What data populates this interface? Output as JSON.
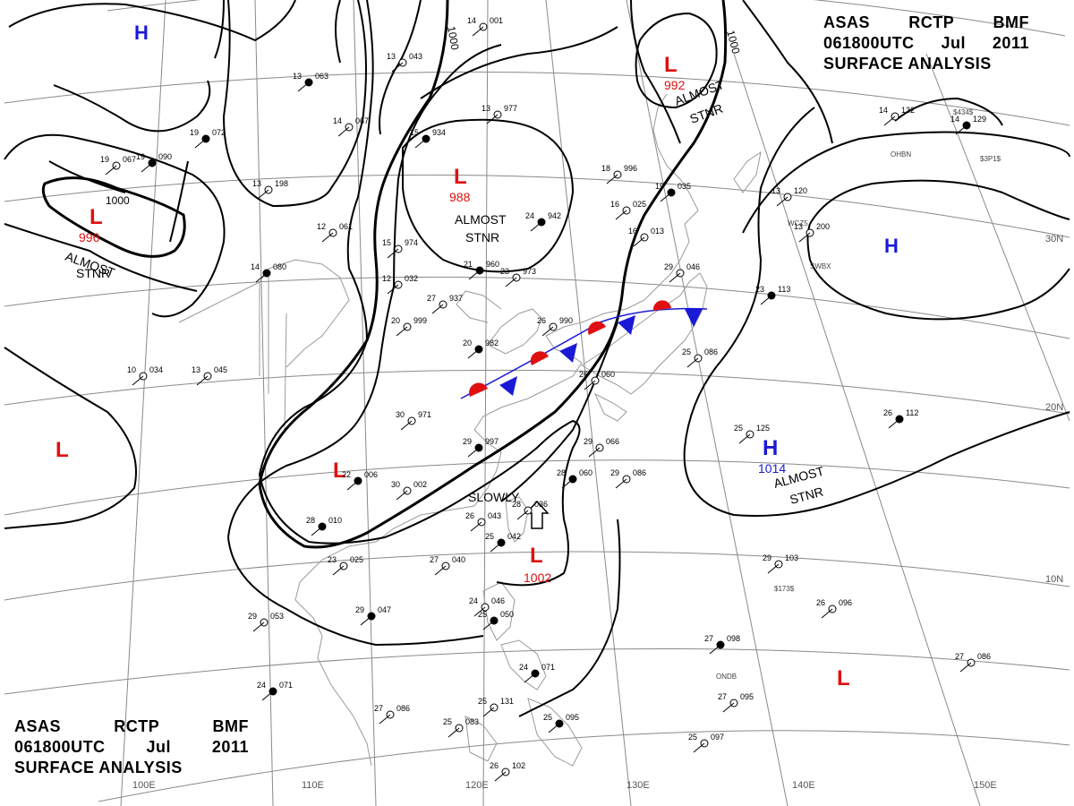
{
  "header": {
    "line1": [
      "ASAS",
      "RCTP",
      "BMF"
    ],
    "line2": [
      "061800UTC",
      "Jul",
      "2011"
    ],
    "line3": "SURFACE ANALYSIS"
  },
  "colors": {
    "high": "#1a1ad6",
    "low": "#e01010",
    "isobar": "#000000",
    "grid": "#8a8a8a",
    "warm_front": "#e01010",
    "cold_front": "#1a1ad6"
  },
  "grid": {
    "lon_labels": [
      "100E",
      "110E",
      "120E",
      "130E",
      "140E",
      "150E"
    ],
    "lat_labels": [
      "30N",
      "20N",
      "10N"
    ]
  },
  "isobar_labels": [
    "1000",
    "1000",
    "1000"
  ],
  "systems": [
    {
      "id": "low-nw",
      "type": "L",
      "pressure": "996",
      "note": "ALMOST\nSTNR"
    },
    {
      "id": "low-north",
      "type": "L",
      "pressure": "988",
      "note": "ALMOST\nSTNR"
    },
    {
      "id": "low-ne",
      "type": "L",
      "pressure": "992",
      "note": "ALMOST\nSTNR"
    },
    {
      "id": "low-sea",
      "type": "L",
      "pressure": "1002",
      "note": "SLOWLY"
    },
    {
      "id": "low-west",
      "type": "L",
      "pressure": "",
      "note": ""
    },
    {
      "id": "low-inland",
      "type": "L",
      "pressure": "",
      "note": ""
    },
    {
      "id": "low-se",
      "type": "L",
      "pressure": "",
      "note": ""
    },
    {
      "id": "high-pac",
      "type": "H",
      "pressure": "1014",
      "note": "ALMOST\nSTNR"
    },
    {
      "id": "high-ne",
      "type": "H",
      "pressure": "",
      "note": ""
    },
    {
      "id": "high-nw",
      "type": "H",
      "pressure": "",
      "note": ""
    }
  ],
  "stations": [
    {
      "t": "13",
      "p": "063"
    },
    {
      "t": "14",
      "p": "001"
    },
    {
      "t": "13",
      "p": "977"
    },
    {
      "t": "15",
      "p": "934"
    },
    {
      "t": "14",
      "p": "067"
    },
    {
      "t": "13",
      "p": "043"
    },
    {
      "t": "19",
      "p": "072"
    },
    {
      "t": "19",
      "p": "067"
    },
    {
      "t": "18",
      "p": "996"
    },
    {
      "t": "19",
      "p": "035"
    },
    {
      "t": "16",
      "p": "025"
    },
    {
      "t": "16",
      "p": "013"
    },
    {
      "t": "24",
      "p": "942"
    },
    {
      "t": "12",
      "p": "061"
    },
    {
      "t": "15",
      "p": "974"
    },
    {
      "t": "14",
      "p": "080"
    },
    {
      "t": "12",
      "p": "032"
    },
    {
      "t": "27",
      "p": "937"
    },
    {
      "t": "21",
      "p": "960"
    },
    {
      "t": "23",
      "p": "973"
    },
    {
      "t": "20",
      "p": "999"
    },
    {
      "t": "20",
      "p": "982"
    },
    {
      "t": "26",
      "p": "990"
    },
    {
      "t": "29",
      "p": "046"
    },
    {
      "t": "23",
      "p": "113"
    },
    {
      "t": "13",
      "p": "120"
    },
    {
      "t": "14",
      "p": "132"
    },
    {
      "t": "14",
      "p": "129"
    },
    {
      "t": "13",
      "p": "200"
    },
    {
      "t": "30",
      "p": "971"
    },
    {
      "t": "29",
      "p": "997"
    },
    {
      "t": "26",
      "p": "060"
    },
    {
      "t": "25",
      "p": "086"
    },
    {
      "t": "26",
      "p": "112"
    },
    {
      "t": "25",
      "p": "125"
    },
    {
      "t": "29",
      "p": "066"
    },
    {
      "t": "28",
      "p": "060"
    },
    {
      "t": "29",
      "p": "086"
    },
    {
      "t": "30",
      "p": "002"
    },
    {
      "t": "28",
      "p": "010"
    },
    {
      "t": "26",
      "p": "043"
    },
    {
      "t": "28",
      "p": "036"
    },
    {
      "t": "25",
      "p": "042"
    },
    {
      "t": "23",
      "p": "025"
    },
    {
      "t": "27",
      "p": "040"
    },
    {
      "t": "29",
      "p": "047"
    },
    {
      "t": "29",
      "p": "053"
    },
    {
      "t": "24",
      "p": "046"
    },
    {
      "t": "25",
      "p": "050"
    },
    {
      "t": "29",
      "p": "103"
    },
    {
      "t": "26",
      "p": "096"
    },
    {
      "t": "27",
      "p": "098"
    },
    {
      "t": "27",
      "p": "095"
    },
    {
      "t": "27",
      "p": "086"
    },
    {
      "t": "24",
      "p": "071"
    },
    {
      "t": "27",
      "p": "086"
    },
    {
      "t": "25",
      "p": "083"
    },
    {
      "t": "25",
      "p": "095"
    },
    {
      "t": "25",
      "p": "097"
    },
    {
      "t": "26",
      "p": "102"
    },
    {
      "t": "24",
      "p": "071"
    },
    {
      "t": "25",
      "p": "131"
    },
    {
      "t": "13",
      "p": "198"
    },
    {
      "t": "19",
      "p": "090"
    },
    {
      "t": "10",
      "p": "034"
    },
    {
      "t": "13",
      "p": "045"
    },
    {
      "t": "22",
      "p": "006"
    }
  ],
  "station_ids": [
    "OHBN",
    "WCZ5",
    "SWBX",
    "$434$",
    "$3P1$",
    "$173$",
    "ONDB"
  ]
}
